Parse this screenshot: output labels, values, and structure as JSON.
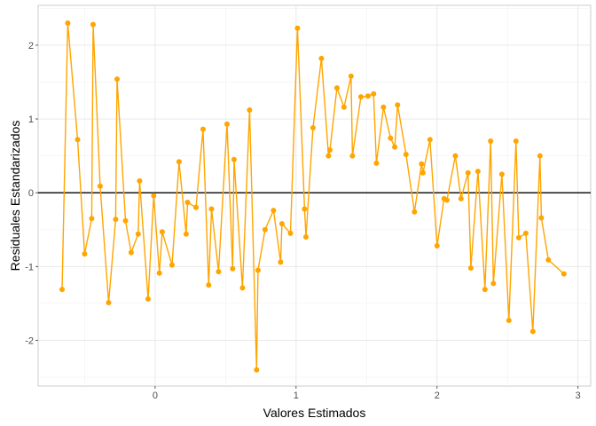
{
  "chart_data": {
    "type": "scatter",
    "xlabel": "Valores Estimados",
    "ylabel": "Residuales Estandarizados",
    "xlim": [
      -0.83,
      3.09
    ],
    "ylim": [
      -2.62,
      2.54
    ],
    "x_ticks": [
      0,
      1,
      2,
      3
    ],
    "y_ticks": [
      -2,
      -1,
      0,
      1,
      2
    ],
    "x_tick_labels": [
      "0",
      "1",
      "2",
      "3"
    ],
    "y_tick_labels": [
      "-2",
      "-1",
      "0",
      "1",
      "2"
    ],
    "grid": true,
    "reference_line": 0,
    "connected": true,
    "series": [
      {
        "color": "#FFA500",
        "points": [
          [
            -0.66,
            -1.31
          ],
          [
            -0.62,
            2.3
          ],
          [
            -0.55,
            0.72
          ],
          [
            -0.5,
            -0.83
          ],
          [
            -0.45,
            -0.35
          ],
          [
            -0.44,
            2.28
          ],
          [
            -0.39,
            0.09
          ],
          [
            -0.33,
            -1.49
          ],
          [
            -0.28,
            -0.36
          ],
          [
            -0.27,
            1.54
          ],
          [
            -0.21,
            -0.38
          ],
          [
            -0.17,
            -0.81
          ],
          [
            -0.12,
            -0.56
          ],
          [
            -0.11,
            0.16
          ],
          [
            -0.05,
            -1.44
          ],
          [
            -0.01,
            -0.04
          ],
          [
            0.03,
            -1.09
          ],
          [
            0.05,
            -0.53
          ],
          [
            0.12,
            -0.98
          ],
          [
            0.17,
            0.42
          ],
          [
            0.22,
            -0.56
          ],
          [
            0.23,
            -0.13
          ],
          [
            0.29,
            -0.2
          ],
          [
            0.34,
            0.86
          ],
          [
            0.38,
            -1.25
          ],
          [
            0.4,
            -0.22
          ],
          [
            0.45,
            -1.07
          ],
          [
            0.51,
            0.93
          ],
          [
            0.55,
            -1.03
          ],
          [
            0.56,
            0.45
          ],
          [
            0.62,
            -1.29
          ],
          [
            0.67,
            1.12
          ],
          [
            0.72,
            -2.4
          ],
          [
            0.73,
            -1.05
          ],
          [
            0.78,
            -0.5
          ],
          [
            0.84,
            -0.24
          ],
          [
            0.89,
            -0.94
          ],
          [
            0.9,
            -0.42
          ],
          [
            0.96,
            -0.55
          ],
          [
            1.01,
            2.23
          ],
          [
            1.06,
            -0.22
          ],
          [
            1.07,
            -0.6
          ],
          [
            1.12,
            0.88
          ],
          [
            1.18,
            1.82
          ],
          [
            1.23,
            0.5
          ],
          [
            1.24,
            0.58
          ],
          [
            1.29,
            1.42
          ],
          [
            1.34,
            1.16
          ],
          [
            1.39,
            1.58
          ],
          [
            1.4,
            0.5
          ],
          [
            1.46,
            1.3
          ],
          [
            1.51,
            1.31
          ],
          [
            1.55,
            1.34
          ],
          [
            1.57,
            0.4
          ],
          [
            1.62,
            1.16
          ],
          [
            1.67,
            0.74
          ],
          [
            1.7,
            0.62
          ],
          [
            1.72,
            1.19
          ],
          [
            1.78,
            0.52
          ],
          [
            1.84,
            -0.26
          ],
          [
            1.89,
            0.39
          ],
          [
            1.9,
            0.27
          ],
          [
            1.95,
            0.72
          ],
          [
            2.0,
            -0.72
          ],
          [
            2.05,
            -0.08
          ],
          [
            2.07,
            -0.1
          ],
          [
            2.13,
            0.5
          ],
          [
            2.17,
            -0.08
          ],
          [
            2.22,
            0.27
          ],
          [
            2.24,
            -1.02
          ],
          [
            2.29,
            0.29
          ],
          [
            2.34,
            -1.31
          ],
          [
            2.38,
            0.7
          ],
          [
            2.4,
            -1.23
          ],
          [
            2.46,
            0.25
          ],
          [
            2.51,
            -1.73
          ],
          [
            2.56,
            0.7
          ],
          [
            2.58,
            -0.61
          ],
          [
            2.63,
            -0.55
          ],
          [
            2.68,
            -1.88
          ],
          [
            2.73,
            0.5
          ],
          [
            2.74,
            -0.34
          ],
          [
            2.79,
            -0.91
          ],
          [
            2.9,
            -1.1
          ]
        ]
      }
    ]
  }
}
